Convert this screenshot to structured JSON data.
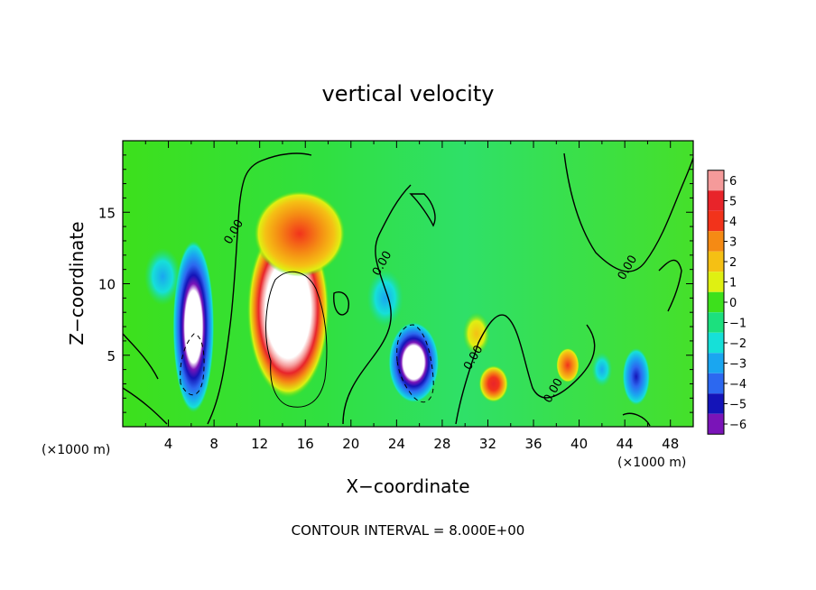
{
  "chart_data": {
    "type": "heatmap",
    "title": "vertical velocity",
    "xlabel": "X−coordinate",
    "ylabel": "Z−coordinate",
    "x_unit_left": "(×1000 m)",
    "x_unit_right": "(×1000 m)",
    "footer": "CONTOUR INTERVAL = 8.000E+00",
    "xlim": [
      0,
      50
    ],
    "ylim": [
      0,
      20
    ],
    "x_ticks": [
      4,
      8,
      12,
      16,
      20,
      24,
      28,
      32,
      36,
      40,
      44,
      48
    ],
    "x_tick_labels": [
      "4",
      "8",
      "12",
      "16",
      "20",
      "24",
      "28",
      "32",
      "36",
      "40",
      "44",
      "48"
    ],
    "y_ticks": [
      5,
      10,
      15
    ],
    "y_tick_labels": [
      "5",
      "10",
      "15"
    ],
    "contour_labels": [
      {
        "text": "0.00",
        "x": 10.0,
        "y": 13.5
      },
      {
        "text": "0.00",
        "x": 23.0,
        "y": 11.3
      },
      {
        "text": "0.00",
        "x": 31.0,
        "y": 4.7
      },
      {
        "text": "0.00",
        "x": 38.0,
        "y": 2.4
      },
      {
        "text": "0.00",
        "x": 44.5,
        "y": 11.0
      }
    ],
    "colorbar": {
      "levels": [
        6,
        5,
        4,
        3,
        2,
        1,
        0,
        -1,
        -2,
        -3,
        -4,
        -5,
        -6
      ],
      "labels": [
        "6",
        "5",
        "4",
        "3",
        "2",
        "1",
        "0",
        "−1",
        "−2",
        "−3",
        "−4",
        "−5",
        "−6"
      ],
      "colors": [
        "#f59a9a",
        "#e8242a",
        "#f2331b",
        "#f58a14",
        "#f5c014",
        "#dff012",
        "#3de01c",
        "#1ce07e",
        "#16e0d8",
        "#1aa6f0",
        "#2c68f0",
        "#1414b8",
        "#7a14b8"
      ]
    },
    "features": [
      {
        "kind": "updraft",
        "x": 14.5,
        "y": 8.2,
        "rx": 3.6,
        "ry": 6.2,
        "peak": 6,
        "saturated": true
      },
      {
        "kind": "updraft",
        "x": 15.5,
        "y": 13.5,
        "rx": 4.0,
        "ry": 3.0,
        "peak": 3.5
      },
      {
        "kind": "downdraft",
        "x": 6.2,
        "y": 7.0,
        "rx": 1.8,
        "ry": 6.0,
        "peak": -5.5,
        "saturated": true
      },
      {
        "kind": "downdraft",
        "x": 3.5,
        "y": 10.5,
        "rx": 1.6,
        "ry": 2.0,
        "peak": -2.5
      },
      {
        "kind": "downdraft",
        "x": 25.5,
        "y": 4.5,
        "rx": 2.2,
        "ry": 2.8,
        "peak": -5.5,
        "saturated": true
      },
      {
        "kind": "downdraft",
        "x": 23.0,
        "y": 9.0,
        "rx": 1.6,
        "ry": 2.0,
        "peak": -2.5
      },
      {
        "kind": "updraft",
        "x": 32.5,
        "y": 3.0,
        "rx": 1.3,
        "ry": 1.3,
        "peak": 4.5
      },
      {
        "kind": "updraft",
        "x": 31.0,
        "y": 6.5,
        "rx": 1.2,
        "ry": 1.5,
        "peak": 2.0
      },
      {
        "kind": "updraft",
        "x": 39.0,
        "y": 4.3,
        "rx": 1.0,
        "ry": 1.2,
        "peak": 3.0
      },
      {
        "kind": "downdraft",
        "x": 45.0,
        "y": 3.5,
        "rx": 1.2,
        "ry": 2.0,
        "peak": -3.8
      },
      {
        "kind": "downdraft",
        "x": 42.0,
        "y": 4.0,
        "rx": 0.9,
        "ry": 1.2,
        "peak": -2.5
      }
    ]
  }
}
